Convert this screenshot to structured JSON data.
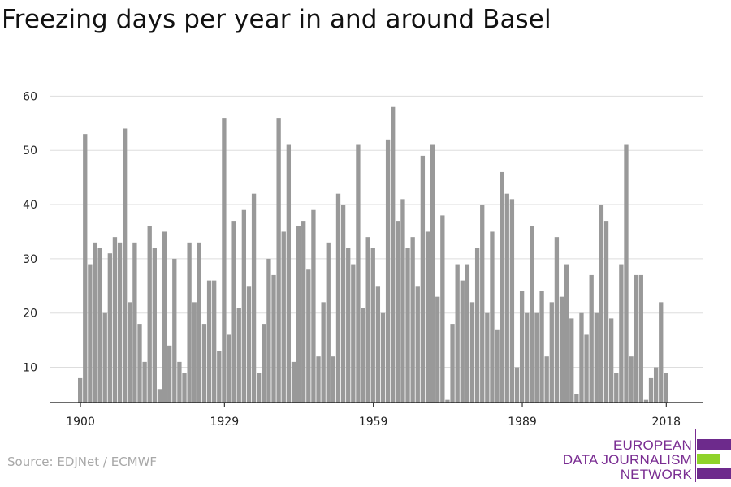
{
  "title": "Freezing days per year in and around Basel",
  "source": "Source: EDJNet / ECMWF",
  "logo": {
    "lines": [
      "EUROPEAN",
      "DATA JOURNALISM",
      "NETWORK"
    ],
    "colors": {
      "purple": "#6d2a8c",
      "green": "#8fd32a"
    }
  },
  "chart_data": {
    "type": "bar",
    "title": "Freezing days per year in and around Basel",
    "xlabel": "",
    "ylabel": "",
    "x_ticks": [
      1900,
      1929,
      1959,
      1989,
      2018
    ],
    "y_ticks": [
      10,
      20,
      30,
      40,
      50,
      60
    ],
    "ylim": [
      3.5,
      62
    ],
    "grid": true,
    "bar_color": "#999999",
    "years": [
      1900,
      1901,
      1902,
      1903,
      1904,
      1905,
      1906,
      1907,
      1908,
      1909,
      1910,
      1911,
      1912,
      1913,
      1914,
      1915,
      1916,
      1917,
      1918,
      1919,
      1920,
      1921,
      1922,
      1923,
      1924,
      1925,
      1926,
      1927,
      1928,
      1929,
      1930,
      1931,
      1932,
      1933,
      1934,
      1935,
      1936,
      1937,
      1938,
      1939,
      1940,
      1941,
      1942,
      1943,
      1944,
      1945,
      1946,
      1947,
      1948,
      1949,
      1950,
      1951,
      1952,
      1953,
      1954,
      1955,
      1956,
      1957,
      1958,
      1959,
      1960,
      1961,
      1962,
      1963,
      1964,
      1965,
      1966,
      1967,
      1968,
      1969,
      1970,
      1971,
      1972,
      1973,
      1974,
      1975,
      1976,
      1977,
      1978,
      1979,
      1980,
      1981,
      1982,
      1983,
      1984,
      1985,
      1986,
      1987,
      1988,
      1989,
      1990,
      1991,
      1992,
      1993,
      1994,
      1995,
      1996,
      1997,
      1998,
      1999,
      2000,
      2001,
      2002,
      2003,
      2004,
      2005,
      2006,
      2007,
      2008,
      2009,
      2010,
      2011,
      2012,
      2013,
      2014,
      2015,
      2016,
      2017,
      2018
    ],
    "values": [
      8,
      53,
      29,
      33,
      32,
      20,
      31,
      34,
      33,
      54,
      22,
      33,
      18,
      11,
      36,
      32,
      6,
      35,
      14,
      30,
      11,
      9,
      33,
      22,
      33,
      18,
      26,
      26,
      13,
      56,
      16,
      37,
      21,
      39,
      25,
      42,
      9,
      18,
      30,
      27,
      56,
      35,
      51,
      11,
      36,
      37,
      28,
      39,
      12,
      22,
      33,
      12,
      42,
      40,
      32,
      29,
      51,
      21,
      34,
      32,
      25,
      20,
      52,
      58,
      37,
      41,
      32,
      34,
      25,
      49,
      35,
      51,
      23,
      38,
      4,
      18,
      29,
      26,
      29,
      22,
      32,
      40,
      20,
      35,
      17,
      46,
      42,
      41,
      10,
      24,
      20,
      36,
      20,
      24,
      12,
      22,
      34,
      23,
      29,
      19,
      5,
      20,
      16,
      27,
      20,
      40,
      37,
      19,
      9,
      29,
      51,
      12,
      27,
      27,
      4,
      8,
      10,
      22,
      9
    ]
  }
}
